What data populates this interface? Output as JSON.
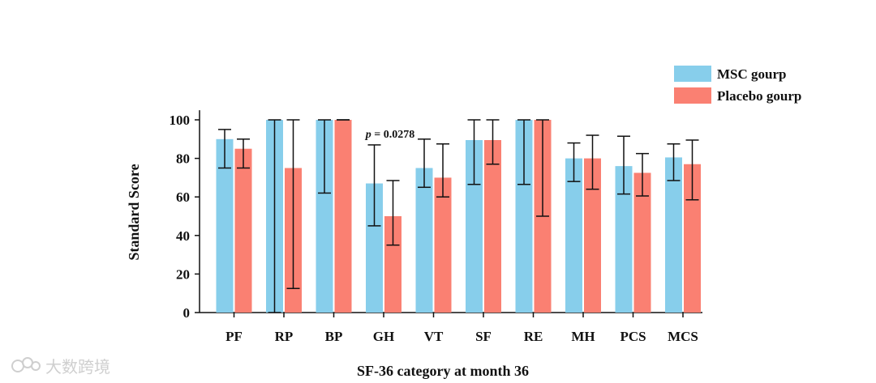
{
  "chart_data": {
    "type": "bar",
    "title": "",
    "xlabel": "SF-36 category at month 36",
    "ylabel": "Standard Score",
    "ylim": [
      0,
      105
    ],
    "yticks": [
      0,
      20,
      40,
      60,
      80,
      100
    ],
    "categories": [
      "PF",
      "RP",
      "BP",
      "GH",
      "VT",
      "SF",
      "RE",
      "MH",
      "PCS",
      "MCS"
    ],
    "series": [
      {
        "name": "MSC gourp",
        "color": "#87CEEB",
        "values": [
          90,
          100,
          100,
          67,
          75,
          89.5,
          100,
          80,
          76,
          80.5
        ],
        "err_low": [
          75,
          0,
          62,
          45,
          65,
          66.5,
          66.5,
          68,
          61.5,
          68.5
        ],
        "err_high": [
          95,
          100,
          100,
          87,
          90,
          100,
          100,
          88,
          91.5,
          87.5
        ]
      },
      {
        "name": "Placebo gourp",
        "color": "#FA8072",
        "values": [
          85,
          75,
          100,
          50,
          70,
          89.5,
          100,
          80,
          72.5,
          77
        ],
        "err_low": [
          75,
          12.5,
          100,
          35,
          60,
          77,
          50,
          64,
          60.5,
          58.5
        ],
        "err_high": [
          90,
          100,
          100,
          68.5,
          87.5,
          100,
          100,
          92,
          82.5,
          89.5
        ]
      }
    ],
    "annotations": [
      {
        "category": "GH",
        "text": "p = 0.0278",
        "y": 92
      }
    ],
    "legend_position": "top-right"
  },
  "watermark": {
    "text": "大数跨境",
    "icon": "watermark-logo-icon"
  }
}
